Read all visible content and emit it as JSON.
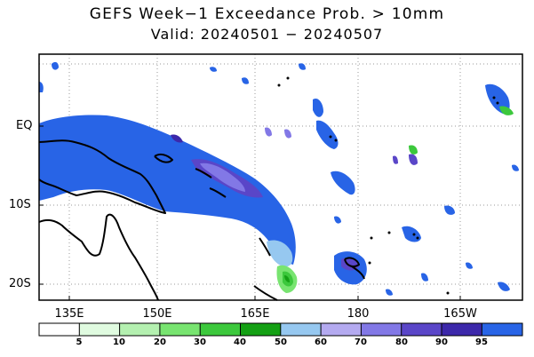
{
  "title": "GEFS Week−1 Exceedance Prob. > 10mm",
  "subtitle": "Valid: 20240501 − 20240507",
  "lat_labels": [
    "EQ",
    "10S",
    "20S"
  ],
  "lon_labels": [
    "135E",
    "150E",
    "165E",
    "180",
    "165W"
  ],
  "colorbar": {
    "labels": [
      "5",
      "10",
      "20",
      "30",
      "40",
      "50",
      "60",
      "70",
      "80",
      "90",
      "95"
    ],
    "colors": [
      "#ffffff",
      "#e0fbe0",
      "#b4f0b0",
      "#78e470",
      "#3cc83c",
      "#14a014",
      "#96c8f0",
      "#b4aaf0",
      "#8278e6",
      "#5a46c8",
      "#3c28aa",
      "#2864e6"
    ]
  }
}
